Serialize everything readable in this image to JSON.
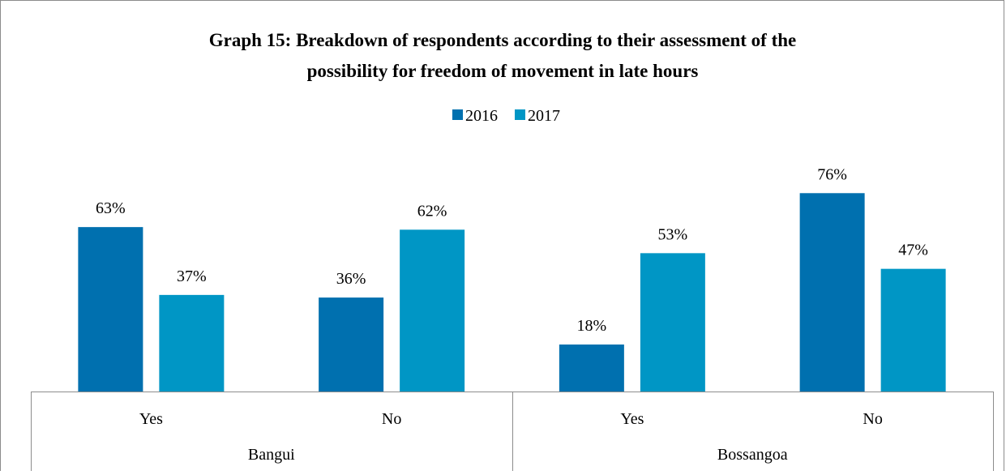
{
  "chart_data": {
    "type": "bar",
    "title_lines": [
      "Graph 15: Breakdown of respondents according to their assessment of the",
      "possibility for freedom of movement in late hours"
    ],
    "groups": [
      "Bangui",
      "Bossangoa"
    ],
    "categories": [
      "Yes",
      "No",
      "Yes",
      "No"
    ],
    "category_groups": [
      0,
      0,
      1,
      1
    ],
    "series": [
      {
        "name": "2016",
        "values": [
          63,
          36,
          18,
          76
        ],
        "color": "#0070AF"
      },
      {
        "name": "2017",
        "values": [
          37,
          62,
          53,
          47
        ],
        "color": "#0096C5"
      }
    ],
    "value_suffix": "%",
    "ylim": [
      0,
      80
    ],
    "grid": false,
    "legend_position": "top-center"
  }
}
